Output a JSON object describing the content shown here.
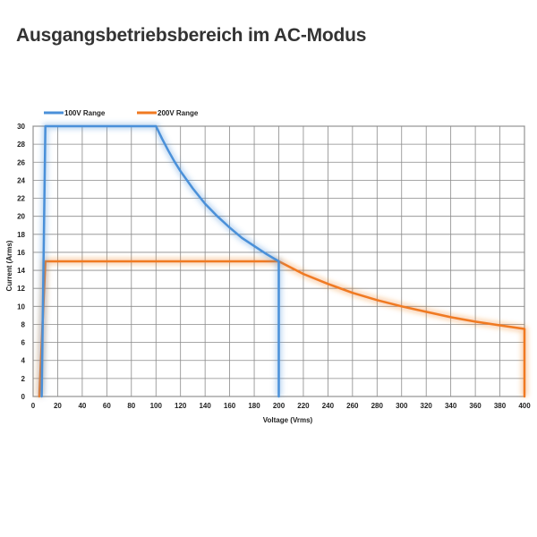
{
  "page": {
    "title": "Ausgangsbetriebsbereich im AC-Modus"
  },
  "chart_data": {
    "type": "line",
    "title": "Ausgangsbetriebsbereich im AC-Modus",
    "xlabel": "Voltage (Vrms)",
    "ylabel": "Current (Arms)",
    "xlim": [
      0,
      400
    ],
    "ylim": [
      0,
      30
    ],
    "x_ticks": [
      0,
      20,
      40,
      60,
      80,
      100,
      120,
      140,
      160,
      180,
      200,
      220,
      240,
      260,
      280,
      300,
      320,
      340,
      360,
      380,
      400
    ],
    "y_ticks": [
      0,
      2,
      4,
      6,
      8,
      10,
      12,
      14,
      16,
      18,
      20,
      22,
      24,
      26,
      28,
      30
    ],
    "grid": true,
    "legend_position": "top-left",
    "series": [
      {
        "name": "100V Range",
        "color": "#4a90d9",
        "x": [
          7,
          10,
          100,
          105,
          110,
          115,
          120,
          130,
          140,
          150,
          160,
          170,
          180,
          190,
          200,
          200
        ],
        "y": [
          0,
          30,
          30,
          28.6,
          27.3,
          26.1,
          25,
          23.1,
          21.4,
          20,
          18.75,
          17.6,
          16.7,
          15.8,
          15,
          0
        ]
      },
      {
        "name": "200V Range",
        "color": "#f07a22",
        "x": [
          5,
          10,
          200,
          220,
          240,
          260,
          280,
          300,
          320,
          340,
          360,
          380,
          400,
          400
        ],
        "y": [
          0,
          15,
          15,
          13.6,
          12.5,
          11.5,
          10.7,
          10,
          9.4,
          8.8,
          8.3,
          7.9,
          7.5,
          0
        ]
      }
    ]
  }
}
